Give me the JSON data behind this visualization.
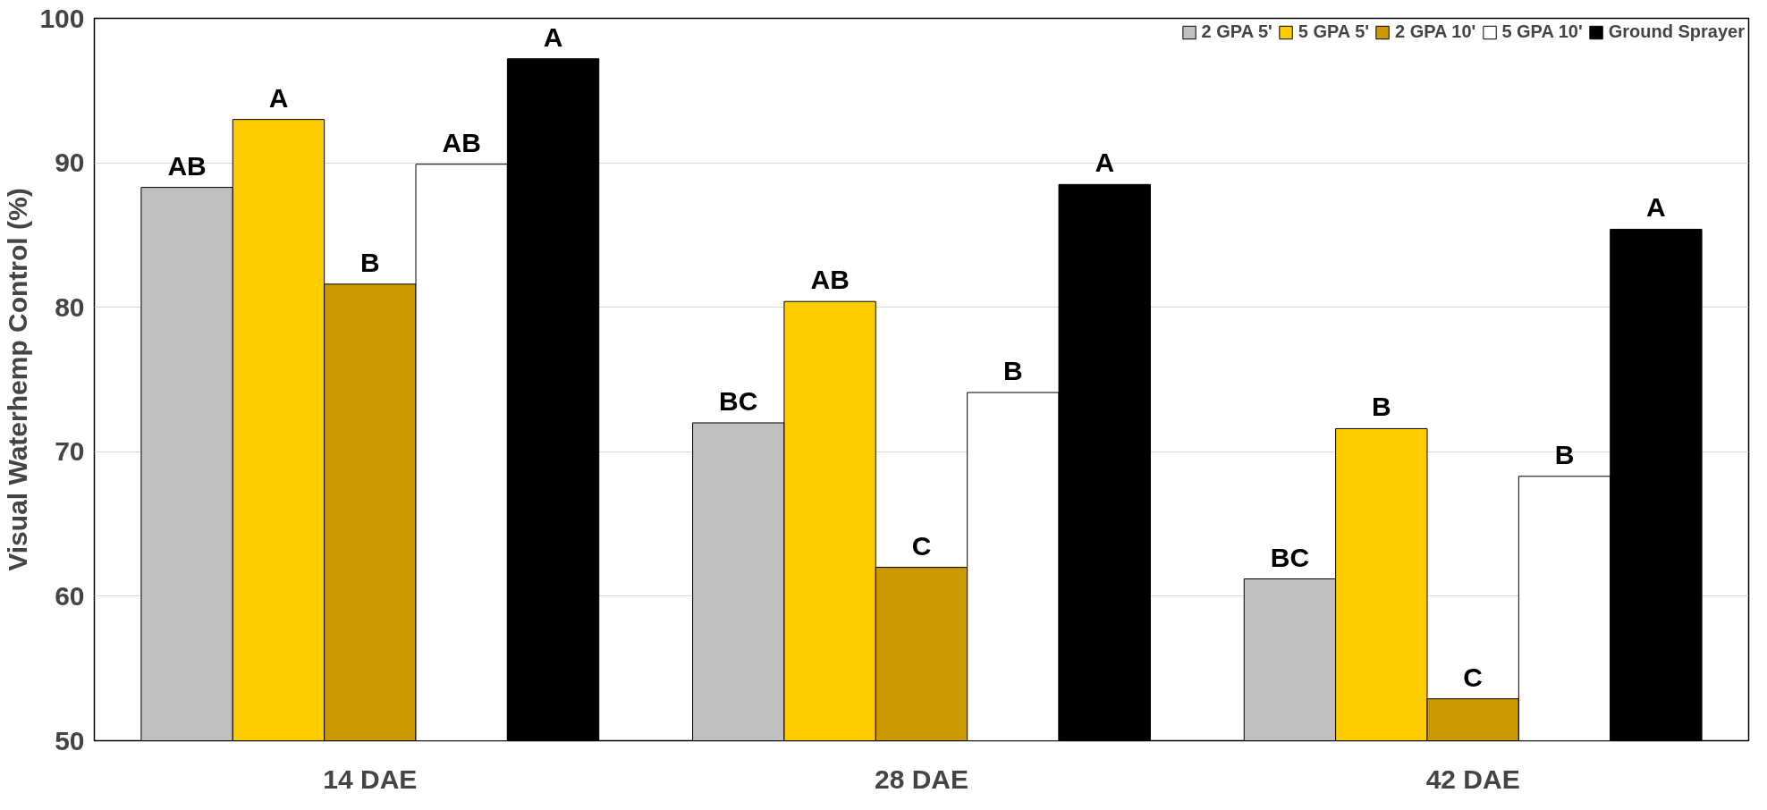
{
  "chart_data": {
    "type": "bar",
    "ylabel": "Visual Waterhemp Control (%)",
    "categories": [
      "14 DAE",
      "28 DAE",
      "42 DAE"
    ],
    "series": [
      {
        "name": "2 GPA 5'",
        "color": "#bfbfbf",
        "values": [
          88.3,
          72.0,
          61.2
        ],
        "value_labels": [
          "AB",
          "BC",
          "BC"
        ]
      },
      {
        "name": "5 GPA 5'",
        "color": "#ffcc00",
        "values": [
          93.0,
          80.4,
          71.6
        ],
        "value_labels": [
          "A",
          "AB",
          "B"
        ]
      },
      {
        "name": "2 GPA 10'",
        "color": "#cc9900",
        "values": [
          81.6,
          62.0,
          52.9
        ],
        "value_labels": [
          "B",
          "C",
          "C"
        ]
      },
      {
        "name": "5 GPA 10'",
        "color": "#ffffff",
        "values": [
          89.9,
          74.1,
          68.3
        ],
        "value_labels": [
          "AB",
          "B",
          "B"
        ]
      },
      {
        "name": "Ground Sprayer",
        "color": "#000000",
        "values": [
          97.2,
          88.5,
          85.4
        ],
        "value_labels": [
          "A",
          "A",
          "A"
        ]
      }
    ],
    "ylim": [
      50,
      100
    ],
    "yticks": [
      50,
      60,
      70,
      80,
      90,
      100
    ],
    "grid": "y",
    "legend": "top right"
  }
}
